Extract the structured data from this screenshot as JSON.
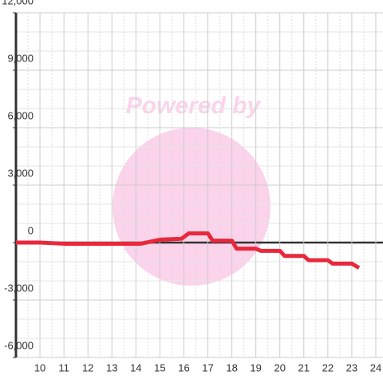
{
  "chart_data": {
    "type": "line",
    "watermark": "Powered by",
    "x": [
      9,
      10,
      11,
      14.2,
      15,
      15.9,
      16.2,
      17,
      17.2,
      18,
      18.2,
      19,
      19.2,
      20,
      20.2,
      21,
      21.2,
      22,
      22.2,
      23,
      23.3
    ],
    "series": [
      {
        "color": "#e8283c",
        "values": [
          0,
          0,
          -60,
          -60,
          150,
          200,
          480,
          480,
          100,
          100,
          -320,
          -320,
          -430,
          -430,
          -700,
          -700,
          -920,
          -920,
          -1100,
          -1100,
          -1320
        ]
      }
    ],
    "xlim": [
      9,
      24.3
    ],
    "xticks": [
      10,
      11,
      12,
      13,
      14,
      15,
      16,
      17,
      18,
      19,
      20,
      21,
      22,
      23,
      24
    ],
    "ylim": [
      -6000,
      12000
    ],
    "yticks": [
      {
        "value": -6000,
        "label": "-6,000"
      },
      {
        "value": -3000,
        "label": "-3,000"
      },
      0,
      {
        "value": 3000,
        "label": "3,000"
      },
      {
        "value": 6000,
        "label": "6,000"
      },
      {
        "value": 9000,
        "label": "9,000"
      },
      {
        "value": 12000,
        "label": "12,000"
      }
    ],
    "grid": true
  }
}
